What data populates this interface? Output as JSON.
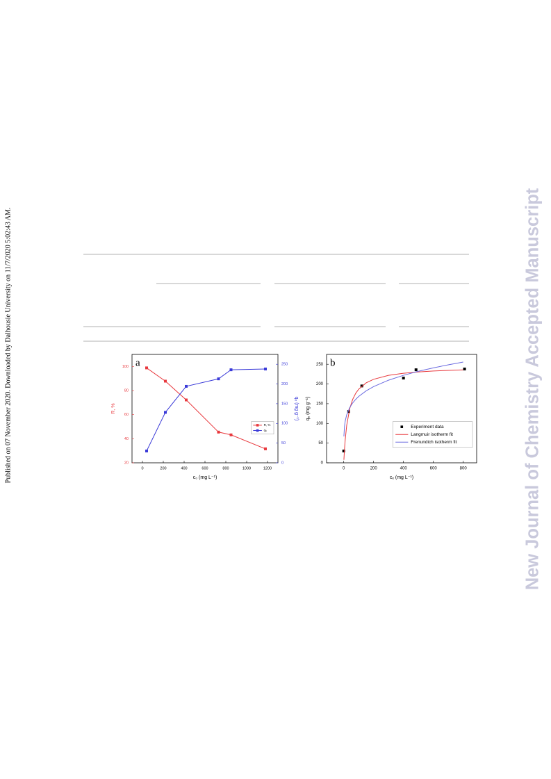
{
  "page": {
    "side_note": "Published on 07 November 2020. Downloaded by Dalhousie University on 11/7/2020 5:02:43 AM.",
    "watermark": "New Journal of Chemistry Accepted Manuscript"
  },
  "chart_data": [
    {
      "type": "line",
      "panel": "a",
      "xlabel": "c₀ (mg L⁻¹)",
      "ylabel": "R, %",
      "y2label": "qₑ (mg g⁻¹)",
      "xlim": [
        -100,
        1300
      ],
      "xticks": [
        0,
        200,
        400,
        600,
        800,
        1000,
        1200
      ],
      "ylim": [
        20,
        110
      ],
      "yticks": [
        20,
        40,
        60,
        80,
        100
      ],
      "y2lim": [
        0,
        275
      ],
      "y2ticks": [
        0,
        50,
        100,
        150,
        200,
        250
      ],
      "legend": "right",
      "x": [
        40,
        220,
        420,
        730,
        850,
        1180
      ],
      "series": [
        {
          "name": "R, %",
          "color": "#e8383d",
          "style": "line-markers",
          "values": [
            98.8,
            87.8,
            72.2,
            45.5,
            43.2,
            31.6
          ]
        },
        {
          "name": "qₑ",
          "color": "#3a3ad8",
          "style": "line-markers",
          "axis": "y2",
          "values": [
            30,
            128,
            194,
            213,
            236,
            238
          ]
        }
      ]
    },
    {
      "type": "scatter",
      "panel": "b",
      "xlabel": "cₑ (mg L⁻¹)",
      "ylabel": "qₑ (mg g⁻¹)",
      "xlim": [
        -115,
        890
      ],
      "xticks": [
        0,
        200,
        400,
        600,
        800
      ],
      "ylim": [
        0,
        275
      ],
      "yticks": [
        0,
        50,
        100,
        150,
        200,
        250
      ],
      "legend": "right",
      "series": [
        {
          "name": "Experiment data",
          "color": "#000000",
          "style": "markers",
          "x": [
            0,
            33,
            121,
            400,
            484,
            809
          ],
          "values": [
            30,
            130,
            195,
            215,
            236,
            238
          ]
        },
        {
          "name": "Langmuir isotherm fit",
          "color": "#e8383d",
          "style": "line",
          "x": [
            1,
            5,
            10,
            20,
            40,
            60,
            80,
            100,
            150,
            200,
            300,
            400,
            500,
            600,
            700,
            800
          ],
          "values": [
            7.6,
            33.8,
            59.4,
            95.6,
            137.5,
            161.1,
            176.2,
            186.7,
            202.8,
            211.9,
            221.9,
            227.2,
            230.6,
            232.9,
            234.5,
            235.8
          ]
        },
        {
          "name": "Frenundich isotherm fit",
          "color": "#6a6ae0",
          "style": "line",
          "x": [
            1,
            5,
            10,
            20,
            40,
            60,
            80,
            100,
            150,
            200,
            300,
            400,
            500,
            600,
            700,
            800
          ],
          "values": [
            67,
            92.5,
            106.2,
            122,
            140.1,
            152,
            160.9,
            168.3,
            182.6,
            193.3,
            209.6,
            222,
            232.2,
            240.9,
            248.6,
            255.6
          ]
        }
      ]
    }
  ]
}
